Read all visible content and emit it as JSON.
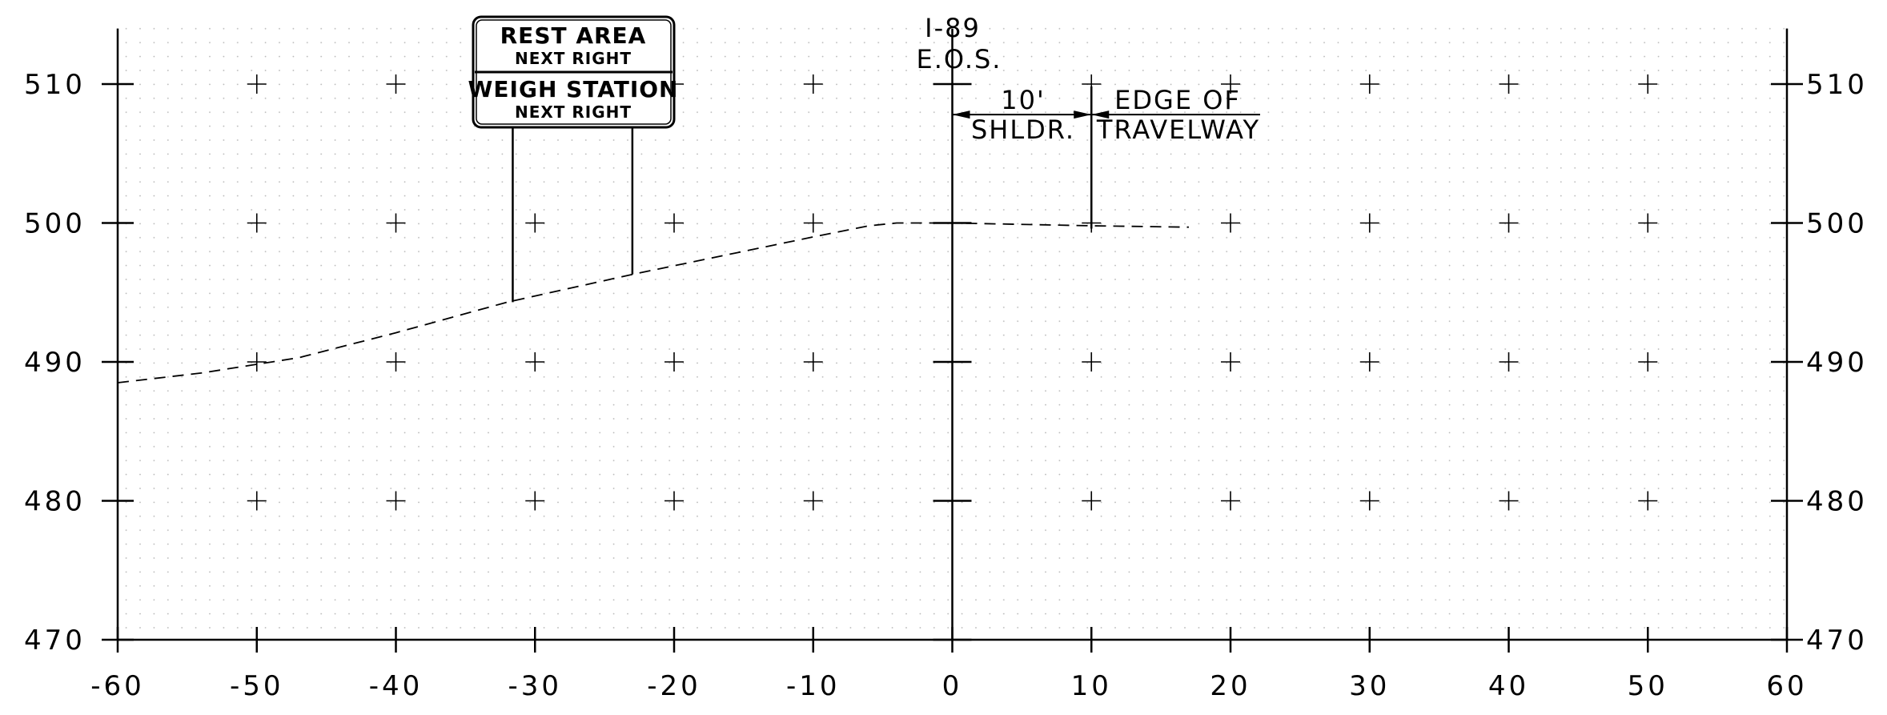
{
  "chart_data": {
    "type": "line",
    "x_ticks": [
      -60,
      -50,
      -40,
      -30,
      -20,
      -10,
      0,
      10,
      20,
      30,
      40,
      50,
      60
    ],
    "y_ticks": [
      470,
      480,
      490,
      500,
      510
    ],
    "xlim": [
      -60,
      60
    ],
    "ylim": [
      470,
      514
    ],
    "grid": true,
    "ground_profile": {
      "style": "dashed",
      "x": [
        -60,
        -54,
        -47,
        -40,
        -32,
        -23,
        -10,
        -6,
        -4,
        0,
        10,
        17
      ],
      "y": [
        488.5,
        489.2,
        490.3,
        492.1,
        494.3,
        496.3,
        499.0,
        499.8,
        500.0,
        500.0,
        499.8,
        499.7
      ]
    },
    "sign_posts": [
      {
        "x": -31.6,
        "y_base": 494.3
      },
      {
        "x": -23.0,
        "y_base": 496.3
      }
    ],
    "dimension": {
      "from": 0,
      "to": 10,
      "y": 507.8
    }
  },
  "sign": {
    "line1": "REST AREA",
    "line2": "NEXT RIGHT",
    "line3": "WEIGH STATION",
    "line4": "NEXT RIGHT",
    "background": "#ffffff",
    "border": "#000000"
  },
  "annotations": {
    "eos_line1": "I-89",
    "eos_line2": "E.O.S.",
    "dim_value": "10'",
    "dim_label": "SHLDR.",
    "edge_line1": "EDGE OF",
    "edge_line2": "TRAVELWAY"
  }
}
